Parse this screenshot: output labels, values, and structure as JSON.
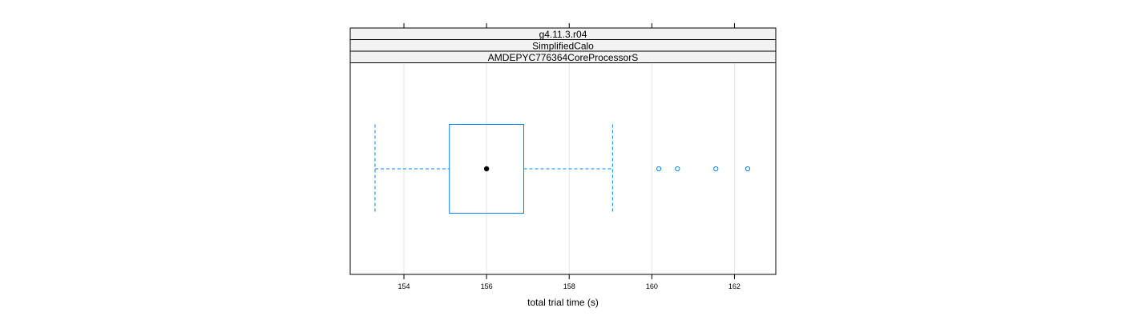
{
  "chart_data": {
    "type": "boxplot",
    "strips": [
      "g4.11.3.r04",
      "SimplifiedCalo",
      "AMDEPYC776364CoreProcessorS"
    ],
    "xlabel": "total trial time (s)",
    "xlim": [
      152.7,
      163.0
    ],
    "xticks": [
      154,
      156,
      158,
      160,
      162
    ],
    "xtick_labels": [
      "154",
      "156",
      "158",
      "160",
      "162"
    ],
    "grid": true,
    "box": {
      "whisker_low": 153.3,
      "q1": 155.1,
      "median": 156.0,
      "q3": 156.9,
      "whisker_high": 159.05
    },
    "outliers": [
      160.17,
      160.62,
      161.55,
      162.32
    ],
    "colors": {
      "box": "#0080ff",
      "whisker": "#0080ff",
      "median": "#000000",
      "outlier": "#0080ff",
      "strip_bg": "#f2f2f2",
      "grid": "#e6e6e6"
    }
  }
}
